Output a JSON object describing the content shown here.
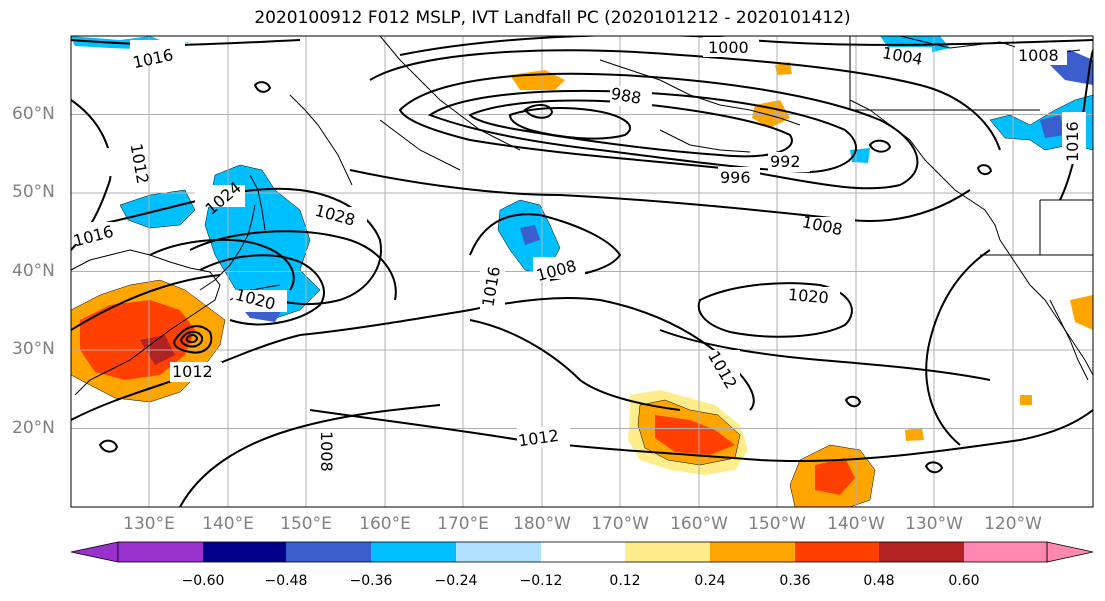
{
  "title": "2020100912 F012 MSLP, IVT Landfall PC (2020101212 - 2020101412)",
  "map": {
    "lat_ticks": [
      {
        "value": 20,
        "label": "20°N"
      },
      {
        "value": 30,
        "label": "30°N"
      },
      {
        "value": 40,
        "label": "40°N"
      },
      {
        "value": 50,
        "label": "50°N"
      },
      {
        "value": 60,
        "label": "60°N"
      }
    ],
    "lon_ticks": [
      {
        "value": 130,
        "label": "130°E"
      },
      {
        "value": 140,
        "label": "140°E"
      },
      {
        "value": 150,
        "label": "150°E"
      },
      {
        "value": 160,
        "label": "160°E"
      },
      {
        "value": 170,
        "label": "170°E"
      },
      {
        "value": 180,
        "label": "180°W"
      },
      {
        "value": 190,
        "label": "170°W"
      },
      {
        "value": 200,
        "label": "160°W"
      },
      {
        "value": 210,
        "label": "150°W"
      },
      {
        "value": 220,
        "label": "140°W"
      },
      {
        "value": 230,
        "label": "130°W"
      },
      {
        "value": 240,
        "label": "120°W"
      }
    ],
    "contour_labels": [
      "1000",
      "1004",
      "1008",
      "988",
      "992",
      "996",
      "1008",
      "1012",
      "1016",
      "1024",
      "1028",
      "1012",
      "1016",
      "1008",
      "1020",
      "1020",
      "1016",
      "1012",
      "1012",
      "1008",
      "1016"
    ],
    "colors": {
      "land_outline": "#000000",
      "gridline": "#b0b0b0"
    }
  },
  "colorbar": {
    "colors": [
      "#9932cc",
      "#00008b",
      "#3a5fcd",
      "#00bfff",
      "#b0e2ff",
      "#ffffff",
      "#ffec8b",
      "#ffa500",
      "#ff4000",
      "#b22222",
      "#ff88b0"
    ],
    "tick_values": [
      "−0.60",
      "−0.48",
      "−0.36",
      "−0.24",
      "−0.12",
      "0.12",
      "0.24",
      "0.36",
      "0.48",
      "0.60"
    ]
  }
}
